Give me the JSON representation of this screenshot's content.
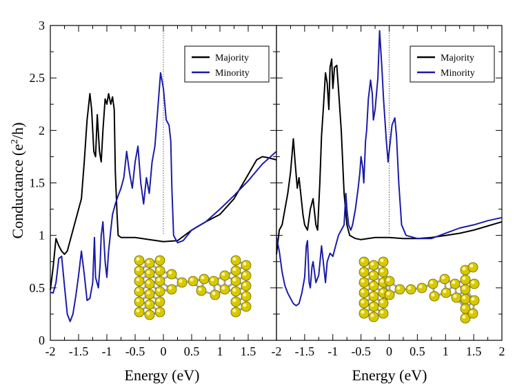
{
  "chart_data": [
    {
      "type": "line",
      "panel": "left",
      "xlabel": "Energy (eV)",
      "ylabel": "Conductance (e²/h)",
      "xlim": [
        -2,
        2
      ],
      "ylim": [
        0,
        3
      ],
      "xticks": [
        "-2",
        "-1.5",
        "-1",
        "-0.5",
        "0",
        "0.5",
        "1",
        "1.5"
      ],
      "yticks": [
        "0",
        "0.5",
        "1",
        "1.5",
        "2",
        "2.5",
        "3"
      ],
      "legend": [
        "Majority",
        "Minority"
      ],
      "colors": {
        "Majority": "#000000",
        "Minority": "#1a1aaa"
      },
      "series": [
        {
          "name": "Majority",
          "points": [
            [
              -2,
              0.48
            ],
            [
              -1.95,
              0.7
            ],
            [
              -1.9,
              0.97
            ],
            [
              -1.85,
              0.9
            ],
            [
              -1.8,
              0.85
            ],
            [
              -1.75,
              0.82
            ],
            [
              -1.7,
              0.85
            ],
            [
              -1.65,
              0.95
            ],
            [
              -1.6,
              1.05
            ],
            [
              -1.55,
              1.15
            ],
            [
              -1.5,
              1.25
            ],
            [
              -1.45,
              1.35
            ],
            [
              -1.4,
              1.7
            ],
            [
              -1.35,
              2.1
            ],
            [
              -1.3,
              2.35
            ],
            [
              -1.27,
              2.2
            ],
            [
              -1.23,
              1.8
            ],
            [
              -1.2,
              1.75
            ],
            [
              -1.17,
              2.15
            ],
            [
              -1.13,
              1.8
            ],
            [
              -1.1,
              1.7
            ],
            [
              -1.07,
              2.0
            ],
            [
              -1.03,
              2.3
            ],
            [
              -1.0,
              2.25
            ],
            [
              -0.97,
              2.35
            ],
            [
              -0.93,
              2.25
            ],
            [
              -0.9,
              2.32
            ],
            [
              -0.87,
              2.2
            ],
            [
              -0.85,
              1.6
            ],
            [
              -0.82,
              1.2
            ],
            [
              -0.8,
              1.0
            ],
            [
              -0.75,
              0.98
            ],
            [
              -0.5,
              0.98
            ],
            [
              -0.25,
              0.96
            ],
            [
              0,
              0.94
            ],
            [
              0.25,
              0.95
            ],
            [
              0.5,
              1.05
            ],
            [
              0.75,
              1.13
            ],
            [
              1.0,
              1.2
            ],
            [
              1.25,
              1.35
            ],
            [
              1.5,
              1.58
            ],
            [
              1.65,
              1.72
            ],
            [
              1.75,
              1.75
            ],
            [
              1.85,
              1.74
            ],
            [
              2.0,
              1.72
            ]
          ]
        },
        {
          "name": "Minority",
          "points": [
            [
              -2,
              0.46
            ],
            [
              -1.95,
              0.45
            ],
            [
              -1.9,
              0.55
            ],
            [
              -1.85,
              0.78
            ],
            [
              -1.8,
              0.8
            ],
            [
              -1.75,
              0.52
            ],
            [
              -1.7,
              0.25
            ],
            [
              -1.65,
              0.18
            ],
            [
              -1.6,
              0.25
            ],
            [
              -1.55,
              0.42
            ],
            [
              -1.5,
              0.62
            ],
            [
              -1.45,
              0.85
            ],
            [
              -1.4,
              0.63
            ],
            [
              -1.35,
              0.38
            ],
            [
              -1.3,
              0.4
            ],
            [
              -1.25,
              0.55
            ],
            [
              -1.22,
              0.98
            ],
            [
              -1.2,
              0.6
            ],
            [
              -1.15,
              0.5
            ],
            [
              -1.12,
              0.72
            ],
            [
              -1.1,
              1.0
            ],
            [
              -1.07,
              1.13
            ],
            [
              -1.03,
              0.75
            ],
            [
              -1.0,
              0.6
            ],
            [
              -0.97,
              0.85
            ],
            [
              -0.93,
              1.05
            ],
            [
              -0.9,
              1.2
            ],
            [
              -0.85,
              1.3
            ],
            [
              -0.8,
              1.38
            ],
            [
              -0.75,
              1.45
            ],
            [
              -0.7,
              1.55
            ],
            [
              -0.65,
              1.8
            ],
            [
              -0.6,
              1.6
            ],
            [
              -0.55,
              1.45
            ],
            [
              -0.5,
              1.7
            ],
            [
              -0.45,
              1.85
            ],
            [
              -0.4,
              1.5
            ],
            [
              -0.35,
              1.3
            ],
            [
              -0.3,
              1.55
            ],
            [
              -0.25,
              1.4
            ],
            [
              -0.2,
              1.7
            ],
            [
              -0.15,
              1.85
            ],
            [
              -0.1,
              2.2
            ],
            [
              -0.05,
              2.55
            ],
            [
              0,
              2.4
            ],
            [
              0.05,
              2.1
            ],
            [
              0.1,
              2.05
            ],
            [
              0.13,
              1.9
            ],
            [
              0.15,
              1.45
            ],
            [
              0.18,
              1.0
            ],
            [
              0.25,
              0.93
            ],
            [
              0.35,
              0.95
            ],
            [
              0.5,
              1.05
            ],
            [
              0.75,
              1.13
            ],
            [
              1.0,
              1.25
            ],
            [
              1.25,
              1.38
            ],
            [
              1.5,
              1.52
            ],
            [
              1.75,
              1.68
            ],
            [
              2.0,
              1.8
            ]
          ]
        }
      ]
    },
    {
      "type": "line",
      "panel": "right",
      "xlabel": "Energy (eV)",
      "ylabel": "",
      "xlim": [
        -2,
        2
      ],
      "ylim": [
        0,
        3
      ],
      "xticks": [
        "-2",
        "-1.5",
        "-1",
        "-0.5",
        "0",
        "0.5",
        "1",
        "1.5",
        "2"
      ],
      "yticks": [],
      "legend": [
        "Majority",
        "Minority"
      ],
      "colors": {
        "Majority": "#000000",
        "Minority": "#1a1aaa"
      },
      "series": [
        {
          "name": "Majority",
          "points": [
            [
              -2,
              0.82
            ],
            [
              -1.95,
              1.05
            ],
            [
              -1.9,
              1.1
            ],
            [
              -1.85,
              1.25
            ],
            [
              -1.8,
              1.4
            ],
            [
              -1.75,
              1.6
            ],
            [
              -1.7,
              1.92
            ],
            [
              -1.67,
              1.7
            ],
            [
              -1.63,
              1.45
            ],
            [
              -1.6,
              1.55
            ],
            [
              -1.57,
              1.4
            ],
            [
              -1.53,
              1.2
            ],
            [
              -1.5,
              1.1
            ],
            [
              -1.45,
              1.05
            ],
            [
              -1.4,
              1.25
            ],
            [
              -1.35,
              1.35
            ],
            [
              -1.3,
              1.1
            ],
            [
              -1.27,
              1.05
            ],
            [
              -1.23,
              1.5
            ],
            [
              -1.2,
              1.95
            ],
            [
              -1.17,
              2.2
            ],
            [
              -1.13,
              2.55
            ],
            [
              -1.1,
              2.45
            ],
            [
              -1.07,
              2.2
            ],
            [
              -1.05,
              2.6
            ],
            [
              -1.02,
              2.68
            ],
            [
              -1.0,
              2.4
            ],
            [
              -0.97,
              2.6
            ],
            [
              -0.93,
              2.62
            ],
            [
              -0.9,
              2.4
            ],
            [
              -0.85,
              2.0
            ],
            [
              -0.8,
              1.4
            ],
            [
              -0.75,
              1.1
            ],
            [
              -0.7,
              1.0
            ],
            [
              -0.6,
              0.97
            ],
            [
              -0.5,
              0.96
            ],
            [
              -0.25,
              0.98
            ],
            [
              0,
              0.98
            ],
            [
              0.25,
              0.97
            ],
            [
              0.5,
              0.97
            ],
            [
              0.75,
              0.98
            ],
            [
              1.0,
              1.0
            ],
            [
              1.25,
              1.02
            ],
            [
              1.5,
              1.05
            ],
            [
              1.75,
              1.09
            ],
            [
              2.0,
              1.13
            ]
          ]
        },
        {
          "name": "Minority",
          "points": [
            [
              -2,
              0.98
            ],
            [
              -1.95,
              0.85
            ],
            [
              -1.9,
              0.65
            ],
            [
              -1.85,
              0.52
            ],
            [
              -1.8,
              0.45
            ],
            [
              -1.75,
              0.4
            ],
            [
              -1.7,
              0.35
            ],
            [
              -1.65,
              0.33
            ],
            [
              -1.6,
              0.35
            ],
            [
              -1.55,
              0.45
            ],
            [
              -1.5,
              0.6
            ],
            [
              -1.47,
              0.9
            ],
            [
              -1.45,
              0.95
            ],
            [
              -1.42,
              0.55
            ],
            [
              -1.4,
              0.5
            ],
            [
              -1.37,
              0.7
            ],
            [
              -1.35,
              0.75
            ],
            [
              -1.3,
              0.55
            ],
            [
              -1.25,
              0.62
            ],
            [
              -1.2,
              0.9
            ],
            [
              -1.17,
              0.75
            ],
            [
              -1.13,
              0.55
            ],
            [
              -1.1,
              0.75
            ],
            [
              -1.05,
              0.83
            ],
            [
              -1.0,
              0.8
            ],
            [
              -0.95,
              0.9
            ],
            [
              -0.9,
              1.0
            ],
            [
              -0.85,
              1.05
            ],
            [
              -0.8,
              1.1
            ],
            [
              -0.77,
              1.4
            ],
            [
              -0.75,
              1.25
            ],
            [
              -0.72,
              1.1
            ],
            [
              -0.68,
              1.05
            ],
            [
              -0.65,
              1.1
            ],
            [
              -0.6,
              1.25
            ],
            [
              -0.55,
              1.45
            ],
            [
              -0.52,
              1.6
            ],
            [
              -0.5,
              1.75
            ],
            [
              -0.47,
              1.65
            ],
            [
              -0.45,
              1.5
            ],
            [
              -0.42,
              1.9
            ],
            [
              -0.4,
              2.0
            ],
            [
              -0.37,
              2.3
            ],
            [
              -0.33,
              2.48
            ],
            [
              -0.3,
              2.35
            ],
            [
              -0.28,
              2.1
            ],
            [
              -0.25,
              2.2
            ],
            [
              -0.2,
              2.5
            ],
            [
              -0.17,
              2.95
            ],
            [
              -0.13,
              2.6
            ],
            [
              -0.1,
              2.3
            ],
            [
              -0.05,
              1.9
            ],
            [
              -0.02,
              1.7
            ],
            [
              0,
              1.8
            ],
            [
              0.05,
              2.05
            ],
            [
              0.1,
              2.12
            ],
            [
              0.13,
              1.95
            ],
            [
              0.17,
              1.5
            ],
            [
              0.22,
              1.1
            ],
            [
              0.3,
              1.0
            ],
            [
              0.5,
              0.97
            ],
            [
              0.75,
              0.97
            ],
            [
              1.0,
              1.02
            ],
            [
              1.25,
              1.07
            ],
            [
              1.5,
              1.1
            ],
            [
              1.75,
              1.14
            ],
            [
              2.0,
              1.17
            ]
          ]
        }
      ]
    }
  ]
}
